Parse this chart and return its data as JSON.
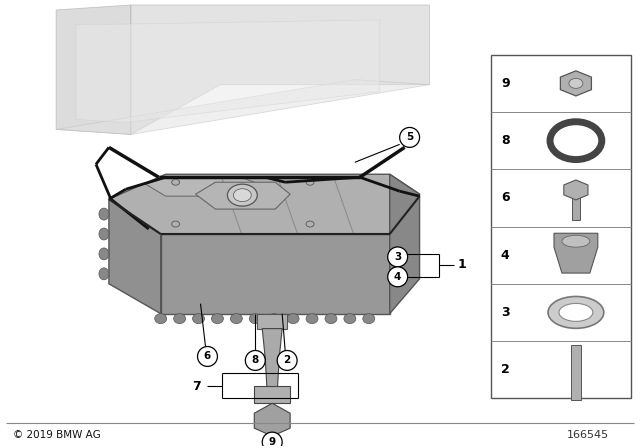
{
  "background_color": "#ffffff",
  "fig_width": 6.4,
  "fig_height": 4.48,
  "dpi": 100,
  "copyright_text": "© 2019 BMW AG",
  "part_number": "166545",
  "sidebar_labels": [
    "9",
    "8",
    "6",
    "4",
    "3",
    "2"
  ],
  "pan_face_color": "#a8a8a8",
  "pan_edge_color": "#444444",
  "engine_color": "#d5d5d5",
  "gasket_color": "#111111"
}
